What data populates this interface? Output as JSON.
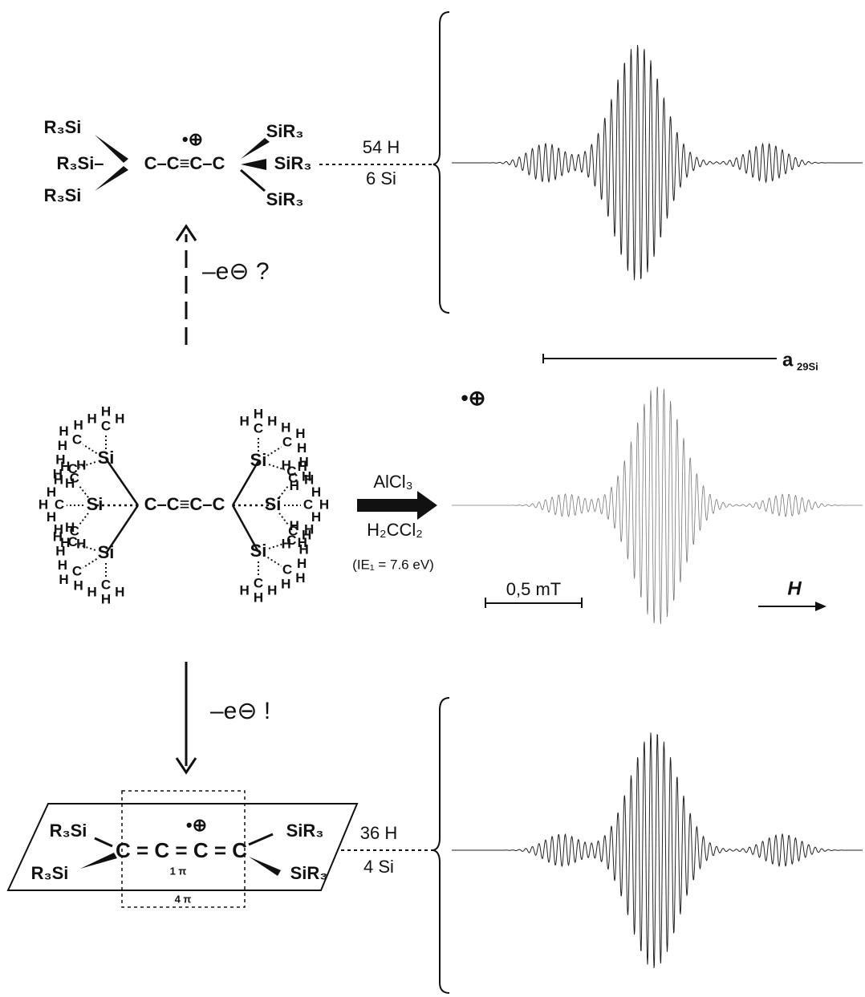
{
  "top_structure": {
    "left_groups": [
      "R₃Si",
      "R₃Si–",
      "R₃Si"
    ],
    "core": "C–C≡C–C",
    "charge": "•⊕",
    "right_groups": [
      "SiR₃",
      "SiR₃",
      "SiR₃"
    ],
    "count_h": "54 H",
    "count_si": "6 Si"
  },
  "arrow_up_label": "–e⊖ ?",
  "middle_structure": {
    "core": "C–C≡C–C",
    "silicon": [
      "Si",
      "Si",
      "Si",
      "Si",
      "Si",
      "Si"
    ],
    "methyl_carbon": [
      "C",
      "C",
      "C",
      "C",
      "C",
      "C",
      "C",
      "C",
      "C",
      "C",
      "C",
      "C",
      "C",
      "C",
      "C",
      "C",
      "C",
      "C"
    ],
    "hydrogen": [
      "H",
      "H",
      "H",
      "H",
      "H",
      "H",
      "H",
      "H",
      "H",
      "H",
      "H",
      "H",
      "H",
      "H",
      "H",
      "H",
      "H",
      "H",
      "H",
      "H",
      "H",
      "H",
      "H",
      "H",
      "H",
      "H",
      "H",
      "H",
      "H",
      "H",
      "H",
      "H",
      "H",
      "H",
      "H",
      "H",
      "H",
      "H",
      "H",
      "H",
      "H",
      "H",
      "H",
      "H",
      "H",
      "H",
      "H",
      "H",
      "H",
      "H",
      "H",
      "H",
      "H",
      "H"
    ]
  },
  "reaction": {
    "reagent": "AlCl₃",
    "solvent": "H₂CCl₂",
    "note": "(IE₁ = 7.6 eV)"
  },
  "spectrum_labels": {
    "coupling": "a",
    "coupling_nucleus": "29Si",
    "radical_cation": "•⊕",
    "scale": "0,5 mT",
    "field": "H"
  },
  "arrow_down_label": "–e⊖ !",
  "bottom_structure": {
    "left_groups": [
      "R₃Si",
      "R₃Si"
    ],
    "core": "C = C = C = C",
    "charge": "•⊕",
    "right_groups": [
      "SiR₃",
      "SiR₃"
    ],
    "pi_inner": "1 π",
    "pi_outer": "4 π",
    "count_h": "36 H",
    "count_si": "4 Si"
  }
}
